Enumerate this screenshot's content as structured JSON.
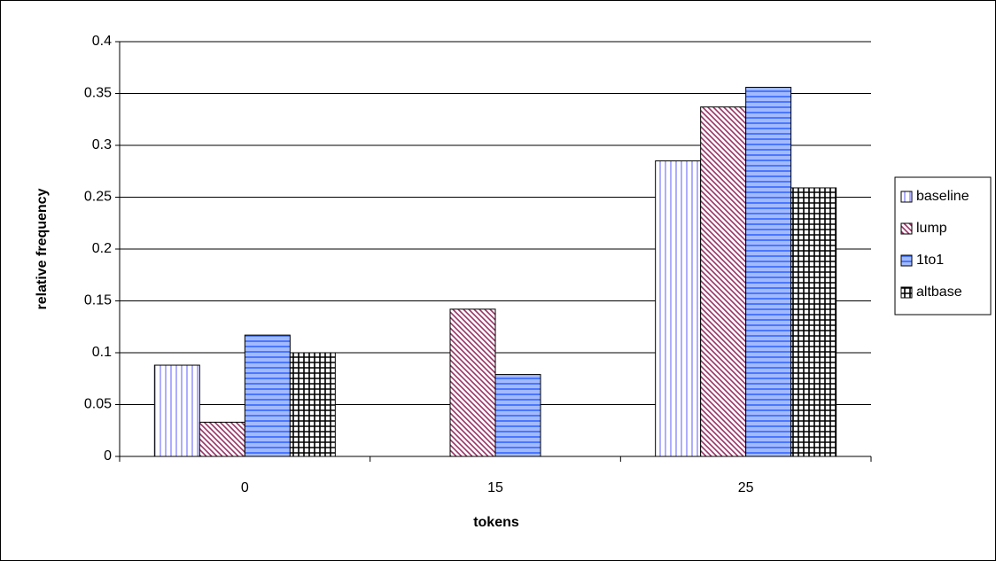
{
  "chart_data": {
    "type": "bar",
    "x_label": "tokens",
    "y_label": "relative frequency",
    "categories": [
      "0",
      "15",
      "25"
    ],
    "series": [
      {
        "name": "baseline",
        "color": "#9999ff",
        "pattern": "vertical",
        "values": [
          0.088,
          0,
          0.285
        ]
      },
      {
        "name": "lump",
        "color": "#993366",
        "pattern": "diagonal",
        "values": [
          0.033,
          0.142,
          0.337
        ]
      },
      {
        "name": "1to1",
        "color": "#3366ff",
        "pattern": "horizontal",
        "values": [
          0.117,
          0.079,
          0.356
        ]
      },
      {
        "name": "altbase",
        "color": "#000000",
        "pattern": "grid",
        "values": [
          0.1,
          0,
          0.259
        ]
      }
    ],
    "ylim": [
      0,
      0.4
    ],
    "yticks": [
      0,
      0.05,
      0.1,
      0.15,
      0.2,
      0.25,
      0.3,
      0.35,
      0.4
    ],
    "grid": true,
    "legend": "right"
  }
}
